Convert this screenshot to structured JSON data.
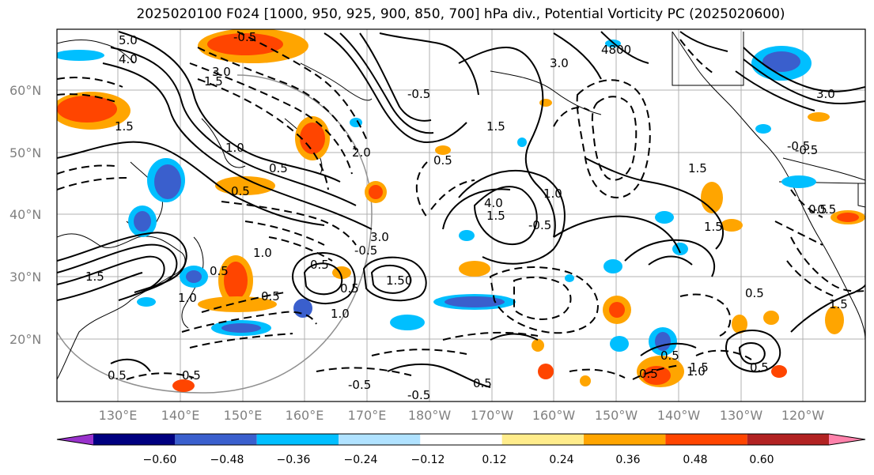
{
  "title": "2025020100 F024 [1000, 950, 925, 900, 850, 700] hPa div., Potential Vorticity PC (2025020600)",
  "lat_labels": [
    "60°N",
    "50°N",
    "40°N",
    "30°N",
    "20°N"
  ],
  "lon_labels": [
    "130°E",
    "140°E",
    "150°E",
    "160°E",
    "170°E",
    "180°W",
    "170°W",
    "160°W",
    "150°W",
    "140°W",
    "130°W",
    "120°W"
  ],
  "colorbar": {
    "ticks": [
      "−0.60",
      "−0.48",
      "−0.36",
      "−0.24",
      "−0.12",
      "0.12",
      "0.24",
      "0.36",
      "0.48",
      "0.60"
    ],
    "colors": [
      "#9932cc",
      "#000080",
      "#3a5fcd",
      "#00bfff",
      "#b0e2ff",
      "#ffffff",
      "#ffec8b",
      "#ffa500",
      "#ff4500",
      "#b22222",
      "#ff82ab"
    ]
  },
  "contour_labels": [
    "5.0",
    "4.0",
    "3.0",
    "2.0",
    "1.5",
    "1.0",
    "0.5",
    "-0.5",
    "-0.5",
    "1.5",
    "0.5",
    "1.0",
    "0.5",
    "1.5",
    "-0.5",
    "1.5",
    "0.5",
    "1.0",
    "0.5",
    "3.0",
    "-0.5",
    "0.5",
    "1.0",
    "0.5",
    "-0.5",
    "1.50",
    "0.5",
    "0.5",
    "1.5",
    "0.5",
    "4.0",
    "1.5",
    "-0.5",
    "0.5",
    "1.5",
    "3.0",
    "-0.5",
    "-0.5",
    "0.5",
    "0.5",
    "0.5",
    "-0.5",
    "1.5",
    "1.0",
    "0.5",
    "1.0",
    "4800",
    "3.0",
    "1.5"
  ]
}
